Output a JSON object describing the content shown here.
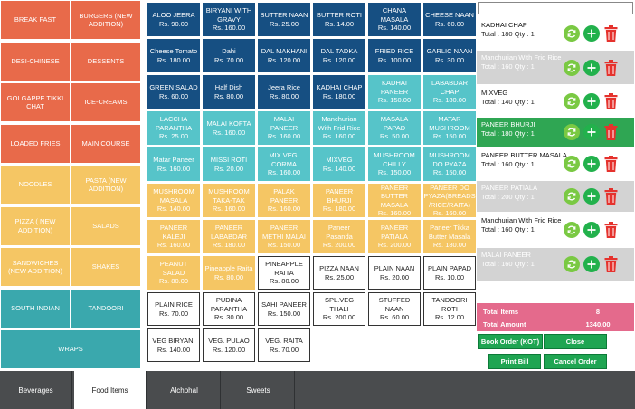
{
  "categories": [
    {
      "label": "BREAK FAST",
      "color": "#e86a4a"
    },
    {
      "label": "BURGERS (NEW ADDITION)",
      "color": "#e86a4a"
    },
    {
      "label": "DESI-CHINESE",
      "color": "#e86a4a"
    },
    {
      "label": "DESSENTS",
      "color": "#e86a4a"
    },
    {
      "label": "GOLGAPPE TIKKI CHAT",
      "color": "#e86a4a"
    },
    {
      "label": "ICE-CREAMS",
      "color": "#e86a4a"
    },
    {
      "label": "LOADED FRIES",
      "color": "#e86a4a"
    },
    {
      "label": "MAIN COURSE",
      "color": "#e86a4a"
    },
    {
      "label": "NOODLES",
      "color": "#f5c664"
    },
    {
      "label": "PASTA (NEW ADDITION)",
      "color": "#f5c664"
    },
    {
      "label": "PIZZA ( NEW ADDITION)",
      "color": "#f5c664"
    },
    {
      "label": "SALADS",
      "color": "#f5c664"
    },
    {
      "label": "SANDWICHES (NEW ADDITION)",
      "color": "#f5c664"
    },
    {
      "label": "SHAKES",
      "color": "#f5c664"
    },
    {
      "label": "SOUTH INDIAN",
      "color": "#3aa8ad"
    },
    {
      "label": "TANDOORI",
      "color": "#3aa8ad"
    },
    {
      "label": "WRAPS",
      "color": "#3aa8ad"
    }
  ],
  "menu_items": [
    {
      "name": "ALOO JEERA",
      "price": "Rs. 90.00",
      "style": "navy"
    },
    {
      "name": "BIRYANI WITH GRAVY",
      "price": "Rs. 160.00",
      "style": "navy"
    },
    {
      "name": "BUTTER NAAN",
      "price": "Rs. 25.00",
      "style": "navy"
    },
    {
      "name": "BUTTER ROTI",
      "price": "Rs. 14.00",
      "style": "navy"
    },
    {
      "name": "CHANA MASALA",
      "price": "Rs. 140.00",
      "style": "navy"
    },
    {
      "name": "CHEESE NAAN",
      "price": "Rs. 60.00",
      "style": "navy"
    },
    {
      "name": "Cheese Tomato",
      "price": "Rs. 180.00",
      "style": "navy"
    },
    {
      "name": "Dahi",
      "price": "Rs. 70.00",
      "style": "navy"
    },
    {
      "name": "DAL MAKHANI",
      "price": "Rs. 120.00",
      "style": "navy"
    },
    {
      "name": "DAL TADKA",
      "price": "Rs. 120.00",
      "style": "navy"
    },
    {
      "name": "FRIED RICE",
      "price": "Rs. 100.00",
      "style": "navy"
    },
    {
      "name": "GARLIC NAAN",
      "price": "Rs. 30.00",
      "style": "navy"
    },
    {
      "name": "GREEN SALAD",
      "price": "Rs. 60.00",
      "style": "navy"
    },
    {
      "name": "Half Dish",
      "price": "Rs. 80.00",
      "style": "navy"
    },
    {
      "name": "Jeera Rice",
      "price": "Rs. 80.00",
      "style": "navy"
    },
    {
      "name": "KADHAI CHAP",
      "price": "Rs. 180.00",
      "style": "navy"
    },
    {
      "name": "KADHAI PANEER",
      "price": "Rs. 150.00",
      "style": "teal"
    },
    {
      "name": "LABABDAR CHAP",
      "price": "Rs. 180.00",
      "style": "teal"
    },
    {
      "name": "LACCHA PARANTHA",
      "price": "Rs. 25.00",
      "style": "teal"
    },
    {
      "name": "MALAI KOFTA",
      "price": "Rs. 160.00",
      "style": "teal"
    },
    {
      "name": "MALAI PANEER",
      "price": "Rs. 160.00",
      "style": "teal"
    },
    {
      "name": "Manchurian With Frid Rice",
      "price": "Rs. 160.00",
      "style": "teal"
    },
    {
      "name": "MASALA PAPAD",
      "price": "Rs. 50.00",
      "style": "teal"
    },
    {
      "name": "MATAR MUSHROOM",
      "price": "Rs. 150.00",
      "style": "teal"
    },
    {
      "name": "Matar Paneer",
      "price": "Rs. 160.00",
      "style": "teal"
    },
    {
      "name": "MISSI ROTI",
      "price": "Rs. 20.00",
      "style": "teal"
    },
    {
      "name": "MIX VEG. CORMA",
      "price": "Rs. 160.00",
      "style": "teal"
    },
    {
      "name": "MIXVEG",
      "price": "Rs. 140.00",
      "style": "teal"
    },
    {
      "name": "MUSHROOM CHILLY",
      "price": "Rs. 150.00",
      "style": "teal"
    },
    {
      "name": "MUSHROOM DO PYAZA",
      "price": "Rs. 150.00",
      "style": "teal"
    },
    {
      "name": "MUSHROOM MASALA",
      "price": "Rs. 140.00",
      "style": "yellow"
    },
    {
      "name": "MUSHROOM TAKA-TAK",
      "price": "Rs. 160.00",
      "style": "yellow"
    },
    {
      "name": "PALAK PANEER",
      "price": "Rs. 160.00",
      "style": "yellow"
    },
    {
      "name": "PANEER BHURJI",
      "price": "Rs. 180.00",
      "style": "yellow"
    },
    {
      "name": "PANEER BUTTER MASALA",
      "price": "Rs. 160.00",
      "style": "yellow"
    },
    {
      "name": "PANEER DO PYAZA(BREADS /RICE/RAITA)",
      "price": "Rs. 160.00",
      "style": "yellow"
    },
    {
      "name": "PANEER KALEJI",
      "price": "Rs. 160.00",
      "style": "yellow"
    },
    {
      "name": "PANEER LABABDAR",
      "price": "Rs. 180.00",
      "style": "yellow"
    },
    {
      "name": "PANEER METHI MALAI",
      "price": "Rs. 150.00",
      "style": "yellow"
    },
    {
      "name": "Paneer Pasanda",
      "price": "Rs. 200.00",
      "style": "yellow"
    },
    {
      "name": "PANEER PATIALA",
      "price": "Rs. 200.00",
      "style": "yellow"
    },
    {
      "name": "Paneer Tikka Butter Masala",
      "price": "Rs. 180.00",
      "style": "yellow"
    },
    {
      "name": "PEANUT SALAD",
      "price": "Rs. 80.00",
      "style": "yellow"
    },
    {
      "name": "Pineapple Raita",
      "price": "Rs. 80.00",
      "style": "yellow"
    },
    {
      "name": "PINEAPPLE RAITA",
      "price": "Rs. 80.00",
      "style": "white"
    },
    {
      "name": "PIZZA NAAN",
      "price": "Rs. 25.00",
      "style": "white"
    },
    {
      "name": "PLAIN NAAN",
      "price": "Rs. 20.00",
      "style": "white"
    },
    {
      "name": "PLAIN PAPAD",
      "price": "Rs. 10.00",
      "style": "white"
    },
    {
      "name": "PLAIN RICE",
      "price": "Rs. 70.00",
      "style": "white"
    },
    {
      "name": "PUDINA PARANTHA",
      "price": "Rs. 30.00",
      "style": "white"
    },
    {
      "name": "SAHI PANEER",
      "price": "Rs. 150.00",
      "style": "white"
    },
    {
      "name": "SPL.VEG THALI",
      "price": "Rs. 200.00",
      "style": "white"
    },
    {
      "name": "STUFFED NAAN",
      "price": "Rs. 60.00",
      "style": "white"
    },
    {
      "name": "TANDOORI ROTI",
      "price": "Rs. 12.00",
      "style": "white"
    },
    {
      "name": "VEG BIRYANI",
      "price": "Rs. 140.00",
      "style": "white"
    },
    {
      "name": "VEG. PULAO",
      "price": "Rs. 120.00",
      "style": "white"
    },
    {
      "name": "VEG. RAITA",
      "price": "Rs. 70.00",
      "style": "white"
    }
  ],
  "item_colors": {
    "navy": "#164f82",
    "teal": "#56c4c9",
    "yellow": "#f5c664",
    "white": "#ffffff"
  },
  "search": {
    "value": "",
    "placeholder": ""
  },
  "order_items": [
    {
      "name": "KADHAI CHAP",
      "total": "Total : 180 Qty : 1",
      "bg": "#ffffff",
      "fg": "#111111"
    },
    {
      "name": "Manchurian With Frid Rice",
      "total": "Total : 160 Qty : 1",
      "bg": "#d3d3d3",
      "fg": "#ffffff"
    },
    {
      "name": "MIXVEG",
      "total": "Total : 140 Qty : 1",
      "bg": "#ffffff",
      "fg": "#111111"
    },
    {
      "name": "PANEER BHURJI",
      "total": "Total : 180 Qty : 1",
      "bg": "#2fa653",
      "fg": "#ffffff"
    },
    {
      "name": "PANEER BUTTER MASALA",
      "total": "Total : 160 Qty : 1",
      "bg": "#ffffff",
      "fg": "#111111"
    },
    {
      "name": "PANEER PATIALA",
      "total": "Total : 200 Qty : 1",
      "bg": "#d3d3d3",
      "fg": "#ffffff"
    },
    {
      "name": "Manchurian With Frid Rice",
      "total": "Total : 160 Qty : 1",
      "bg": "#ffffff",
      "fg": "#111111"
    },
    {
      "name": "MALAI PANEER",
      "total": "Total : 160 Qty : 1",
      "bg": "#d3d3d3",
      "fg": "#ffffff"
    }
  ],
  "summary": {
    "total_items_label": "Total Items",
    "total_items_value": "8",
    "total_amount_label": "Total Amount",
    "total_amount_value": "1340.00"
  },
  "buttons": {
    "book_order": "Book Order (KOT)",
    "close": "Close",
    "print_bill": "Print Bill",
    "cancel_order": "Cancel Order"
  },
  "tabs": [
    {
      "label": "Beverages",
      "active": false
    },
    {
      "label": "Food Items",
      "active": true
    },
    {
      "label": "Alchohal",
      "active": false
    },
    {
      "label": "Sweets",
      "active": false
    }
  ],
  "icon_colors": {
    "refresh": "#7ac943",
    "add": "#22b14c",
    "delete": "#e5322d"
  }
}
